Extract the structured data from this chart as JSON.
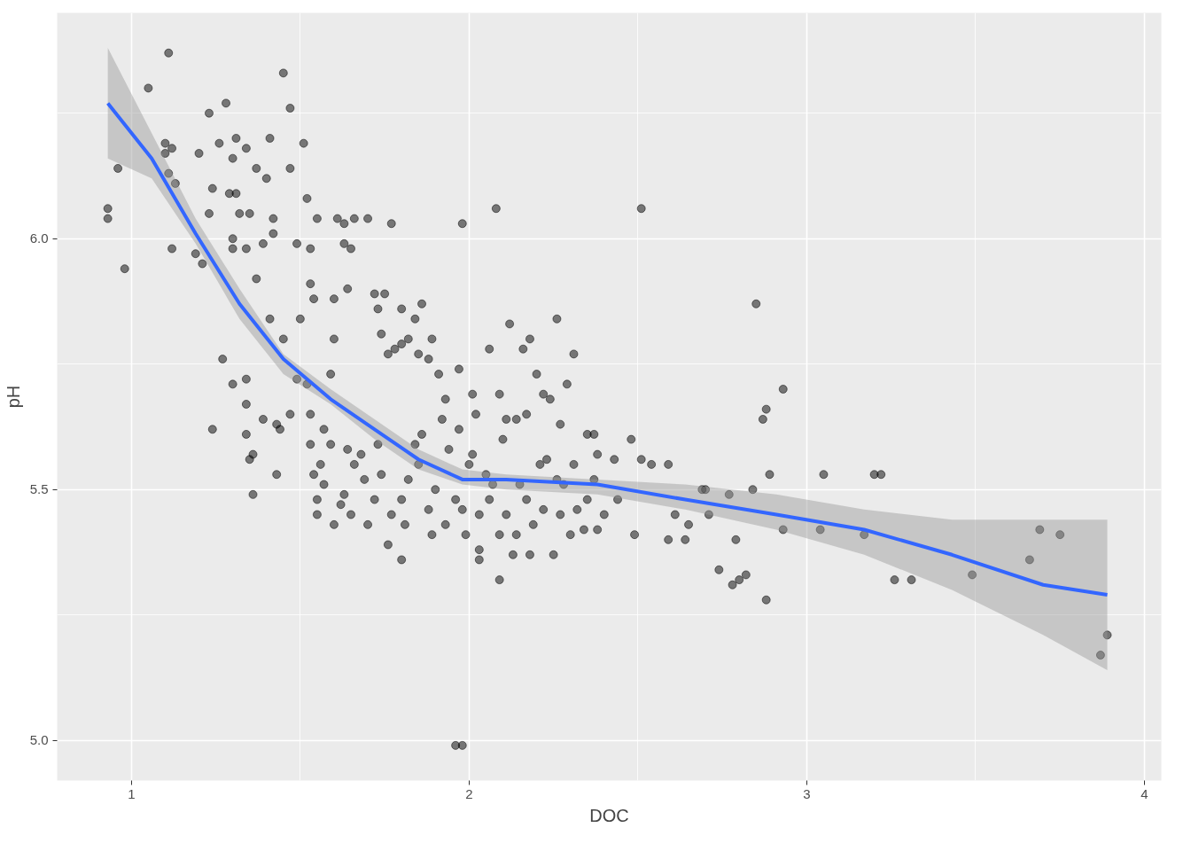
{
  "chart_data": {
    "type": "scatter",
    "xlabel": "DOC",
    "ylabel": "pH",
    "xlim": [
      0.78,
      4.05
    ],
    "ylim": [
      4.92,
      6.45
    ],
    "xticks": [
      1,
      {
        "value": 1.5,
        "label": null
      },
      2,
      {
        "value": 2.5,
        "label": null
      },
      3,
      {
        "value": 3.5,
        "label": null
      },
      4
    ],
    "yticks": [
      {
        "value": 5,
        "label": "5.0"
      },
      {
        "value": 5.25,
        "label": null
      },
      {
        "value": 5.5,
        "label": "5.5"
      },
      {
        "value": 5.75,
        "label": null
      },
      {
        "value": 6,
        "label": "6.0"
      },
      {
        "value": 6.25,
        "label": null
      }
    ],
    "grid": true,
    "series": [
      {
        "marker": "circle",
        "color": "#000000",
        "x": [
          0.93,
          0.93,
          0.96,
          0.98,
          1.05,
          1.11,
          1.1,
          1.1,
          1.12,
          1.11,
          1.13,
          1.12,
          1.19,
          1.2,
          1.21,
          1.23,
          1.23,
          1.24,
          1.26,
          1.28,
          1.29,
          1.3,
          1.3,
          1.3,
          1.31,
          1.31,
          1.32,
          1.34,
          1.34,
          1.35,
          1.37,
          1.37,
          1.39,
          1.4,
          1.41,
          1.42,
          1.42,
          1.45,
          1.47,
          1.47,
          1.49,
          1.51,
          1.53,
          1.53,
          1.55,
          1.52,
          1.54,
          1.41,
          1.45,
          1.5,
          1.27,
          1.3,
          1.34,
          1.34,
          1.34,
          1.36,
          1.24,
          1.39,
          1.43,
          1.47,
          1.43,
          1.35,
          1.36,
          1.44,
          1.49,
          1.52,
          1.53,
          1.53,
          1.54,
          1.55,
          1.56,
          1.57,
          1.59,
          1.59,
          1.6,
          1.6,
          1.61,
          1.63,
          1.63,
          1.64,
          1.65,
          1.66,
          1.7,
          1.72,
          1.73,
          1.75,
          1.77,
          1.74,
          1.76,
          1.78,
          1.8,
          1.8,
          1.82,
          1.84,
          1.85,
          1.86,
          1.88,
          1.89,
          1.91,
          1.93,
          1.97,
          1.98,
          2.0,
          2.01,
          2.02,
          2.06,
          2.08,
          2.09,
          2.11,
          2.12,
          2.14,
          2.16,
          2.17,
          2.18,
          2.2,
          2.22,
          2.24,
          2.26,
          2.27,
          2.29,
          2.31,
          2.35,
          2.37,
          2.38,
          2.43,
          2.48,
          2.49,
          2.51,
          2.51,
          2.54,
          2.59,
          2.59,
          2.61,
          2.64,
          2.65,
          2.69,
          2.7,
          2.71,
          2.74,
          2.77,
          2.78,
          2.79,
          2.8,
          2.82,
          2.84,
          2.85,
          2.87,
          2.88,
          2.88,
          2.89,
          2.93,
          2.93,
          3.05,
          3.04,
          3.2,
          3.22,
          3.17,
          3.26,
          3.31,
          3.49,
          3.66,
          3.69,
          3.75,
          3.87,
          3.89,
          1.64,
          1.66,
          1.69,
          1.72,
          1.74,
          1.77,
          1.8,
          1.82,
          1.85,
          1.88,
          1.9,
          1.93,
          1.96,
          1.98,
          1.99,
          2.01,
          2.03,
          2.06,
          2.09,
          2.11,
          2.14,
          2.17,
          2.19,
          2.22,
          2.25,
          2.27,
          2.3,
          2.32,
          2.35,
          2.38,
          2.4,
          2.44,
          1.96,
          1.98,
          1.62,
          1.65,
          1.68,
          1.7,
          1.73,
          1.76,
          1.81,
          1.84,
          1.86,
          1.89,
          1.92,
          1.94,
          1.97,
          2.03,
          2.05,
          2.07,
          2.1,
          2.13,
          2.15,
          2.18,
          2.21,
          2.23,
          2.26,
          2.28,
          2.31,
          2.34,
          2.37,
          1.55,
          1.57,
          1.6,
          1.63,
          1.8,
          2.09,
          2.03
        ],
        "values": [
          6.06,
          6.04,
          6.14,
          5.94,
          6.3,
          6.37,
          6.19,
          6.17,
          6.18,
          6.13,
          6.11,
          5.98,
          5.97,
          6.17,
          5.95,
          6.25,
          6.05,
          6.1,
          6.19,
          6.27,
          6.09,
          6.0,
          5.98,
          6.16,
          6.09,
          6.2,
          6.05,
          6.18,
          5.98,
          6.05,
          5.92,
          6.14,
          5.99,
          6.12,
          6.2,
          6.04,
          6.01,
          6.33,
          6.14,
          6.26,
          5.99,
          6.19,
          5.98,
          5.91,
          6.04,
          6.08,
          5.88,
          5.84,
          5.8,
          5.84,
          5.76,
          5.71,
          5.72,
          5.67,
          5.61,
          5.57,
          5.62,
          5.64,
          5.53,
          5.65,
          5.63,
          5.56,
          5.49,
          5.62,
          5.72,
          5.71,
          5.65,
          5.59,
          5.53,
          5.48,
          5.55,
          5.62,
          5.59,
          5.73,
          5.8,
          5.88,
          6.04,
          6.03,
          5.99,
          5.9,
          5.98,
          6.04,
          6.04,
          5.89,
          5.86,
          5.89,
          6.03,
          5.81,
          5.77,
          5.78,
          5.86,
          5.79,
          5.8,
          5.84,
          5.77,
          5.87,
          5.76,
          5.8,
          5.73,
          5.68,
          5.74,
          6.03,
          5.55,
          5.69,
          5.65,
          5.78,
          6.06,
          5.69,
          5.64,
          5.83,
          5.64,
          5.78,
          5.65,
          5.8,
          5.73,
          5.69,
          5.68,
          5.84,
          5.63,
          5.71,
          5.77,
          5.61,
          5.61,
          5.57,
          5.56,
          5.6,
          5.41,
          6.06,
          5.56,
          5.55,
          5.55,
          5.4,
          5.45,
          5.4,
          5.43,
          5.5,
          5.5,
          5.45,
          5.34,
          5.49,
          5.31,
          5.4,
          5.32,
          5.33,
          5.5,
          5.87,
          5.64,
          5.66,
          5.28,
          5.53,
          5.7,
          5.42,
          5.53,
          5.42,
          5.53,
          5.53,
          5.41,
          5.32,
          5.32,
          5.33,
          5.36,
          5.42,
          5.41,
          5.17,
          5.21,
          5.58,
          5.55,
          5.52,
          5.48,
          5.53,
          5.45,
          5.48,
          5.52,
          5.55,
          5.46,
          5.5,
          5.43,
          5.48,
          5.46,
          5.41,
          5.57,
          5.45,
          5.48,
          5.41,
          5.45,
          5.41,
          5.48,
          5.43,
          5.46,
          5.37,
          5.45,
          5.41,
          5.46,
          5.48,
          5.42,
          5.45,
          5.48,
          4.99,
          4.99,
          5.47,
          5.45,
          5.57,
          5.43,
          5.59,
          5.39,
          5.43,
          5.59,
          5.61,
          5.41,
          5.64,
          5.58,
          5.62,
          5.38,
          5.53,
          5.51,
          5.6,
          5.37,
          5.51,
          5.37,
          5.55,
          5.56,
          5.52,
          5.51,
          5.55,
          5.42,
          5.52,
          5.45,
          5.51,
          5.43,
          5.49,
          5.36,
          5.32,
          5.36
        ]
      },
      {
        "type": "line",
        "color": "#3366ff",
        "x": [
          0.93,
          1.06,
          1.19,
          1.32,
          1.45,
          1.59,
          1.72,
          1.85,
          1.98,
          2.11,
          2.38,
          2.64,
          2.91,
          3.17,
          3.43,
          3.7,
          3.89
        ],
        "values": [
          6.27,
          6.16,
          6.01,
          5.87,
          5.76,
          5.68,
          5.62,
          5.56,
          5.52,
          5.52,
          5.51,
          5.48,
          5.45,
          5.42,
          5.37,
          5.31,
          5.29
        ],
        "upper": [
          6.38,
          6.21,
          6.04,
          5.9,
          5.77,
          5.7,
          5.64,
          5.58,
          5.54,
          5.53,
          5.52,
          5.51,
          5.49,
          5.46,
          5.44,
          5.44,
          5.44
        ],
        "lower": [
          6.16,
          6.12,
          5.99,
          5.84,
          5.73,
          5.67,
          5.6,
          5.54,
          5.51,
          5.5,
          5.49,
          5.46,
          5.42,
          5.37,
          5.3,
          5.21,
          5.14
        ]
      }
    ]
  }
}
